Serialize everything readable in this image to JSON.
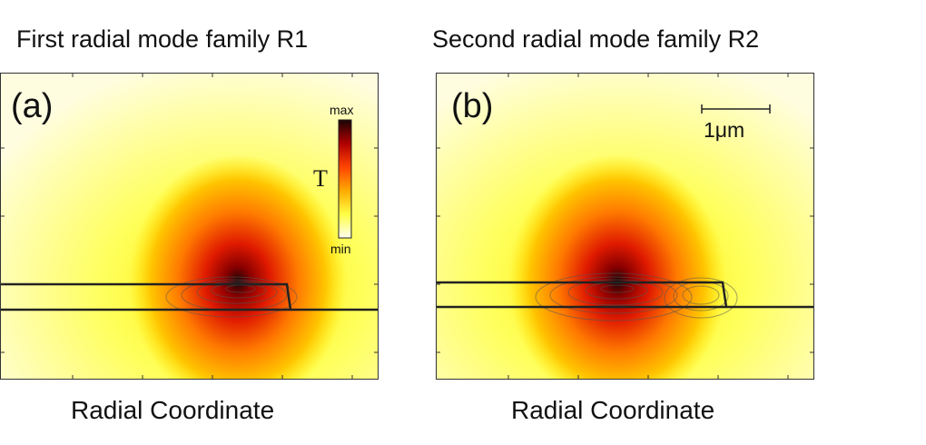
{
  "panels": [
    {
      "title": "First radial mode family R1",
      "label": "(a)",
      "xlabel": "Radial Coordinate",
      "hotspot_color": "#1a0a0a",
      "colorbar": {
        "max_label": "max",
        "min_label": "min",
        "quantity": "T"
      }
    },
    {
      "title": "Second radial mode family R2",
      "label": "(b)",
      "xlabel": "Radial Coordinate",
      "hotspot_color": "#1a0a0a",
      "scalebar": {
        "label": "1μm"
      }
    }
  ],
  "colormap": [
    "#ffffe6",
    "#ffff66",
    "#ffcc00",
    "#ff6600",
    "#dd1100",
    "#1a0505"
  ]
}
